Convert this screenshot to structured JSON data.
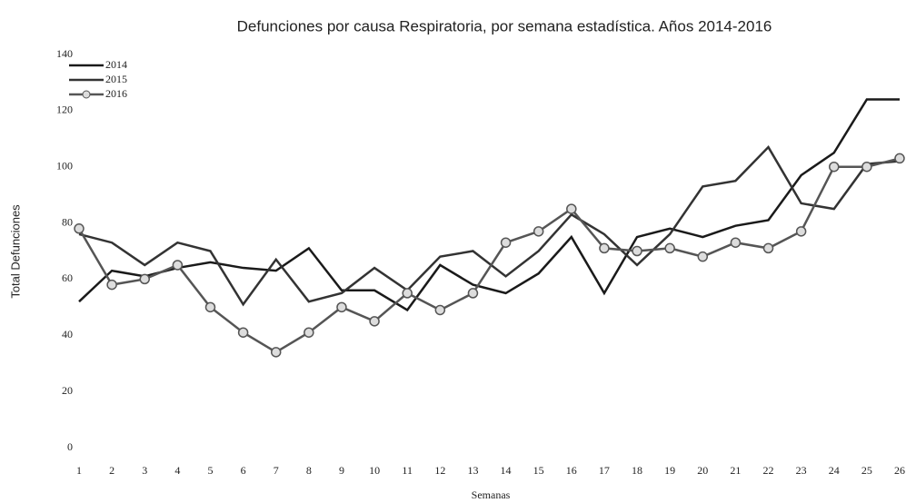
{
  "chart_data": {
    "type": "line",
    "title": "Defunciones por causa Respiratoria, por semana estadística. Años 2014-2016",
    "xlabel": "Semanas",
    "ylabel": "Total Defunciones",
    "categories": [
      "1",
      "2",
      "3",
      "4",
      "5",
      "6",
      "7",
      "8",
      "9",
      "10",
      "11",
      "12",
      "13",
      "14",
      "15",
      "16",
      "17",
      "18",
      "19",
      "20",
      "21",
      "22",
      "23",
      "24",
      "25",
      "26"
    ],
    "ylim": [
      0,
      140
    ],
    "yticks": [
      0,
      20,
      40,
      60,
      80,
      100,
      120,
      140
    ],
    "grid": false,
    "legend": "upper left",
    "series": [
      {
        "name": "2014",
        "color": "#1a1a1a",
        "marker": false,
        "values": [
          52,
          63,
          61,
          64,
          66,
          64,
          63,
          71,
          56,
          56,
          49,
          65,
          58,
          55,
          62,
          75,
          55,
          75,
          78,
          75,
          79,
          81,
          97,
          105,
          124,
          124
        ]
      },
      {
        "name": "2015",
        "color": "#333333",
        "marker": false,
        "values": [
          76,
          73,
          65,
          73,
          70,
          51,
          67,
          52,
          55,
          64,
          56,
          68,
          70,
          61,
          70,
          83,
          76,
          65,
          76,
          93,
          95,
          107,
          87,
          85,
          101,
          102
        ]
      },
      {
        "name": "2016",
        "color": "#555555",
        "marker": true,
        "values": [
          78,
          58,
          60,
          65,
          50,
          41,
          34,
          41,
          50,
          45,
          55,
          49,
          55,
          73,
          77,
          85,
          71,
          70,
          71,
          68,
          73,
          71,
          77,
          100,
          100,
          103
        ]
      }
    ]
  }
}
